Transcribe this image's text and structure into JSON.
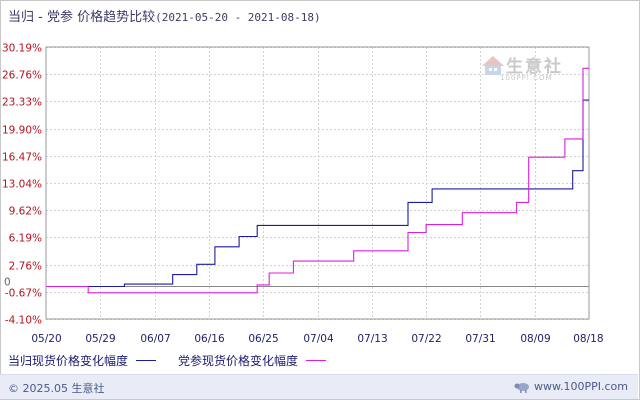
{
  "title": {
    "main": "当归 - 党参 价格趋势比较",
    "range": "(2021-05-20 - 2021-08-18)"
  },
  "colors": {
    "series1": "#1c1ca0",
    "series2": "#dc1ee0",
    "axis_text_y": "#b4141e",
    "axis_text_x": "#222266",
    "zero_line": "#888888",
    "grid": "#d2d2d2"
  },
  "watermark": {
    "name": "生意社",
    "url": "100PPI.COM",
    "icon": "house-logo-icon"
  },
  "chart_data": {
    "type": "line",
    "step": true,
    "ylim": [
      -4.1,
      30.19
    ],
    "y_ticks": [
      "30.19%",
      "26.76%",
      "23.33%",
      "19.90%",
      "16.47%",
      "13.04%",
      "9.62%",
      "6.19%",
      "2.76%",
      "-0.67%",
      "-4.10%"
    ],
    "y_tick_values": [
      30.19,
      26.76,
      23.33,
      19.9,
      16.47,
      13.04,
      9.62,
      6.19,
      2.76,
      -0.67,
      -4.1
    ],
    "zero_line_label": "0",
    "x_ticks": [
      "05/20",
      "05/29",
      "06/07",
      "06/16",
      "06/25",
      "07/04",
      "07/13",
      "07/22",
      "07/31",
      "08/09",
      "08/18"
    ],
    "x_day_range": [
      0,
      90
    ],
    "grid": true,
    "legend_position": "bottom-left",
    "series": [
      {
        "name": "当归现货价格变化幅度",
        "points": [
          [
            0,
            0
          ],
          [
            7,
            0
          ],
          [
            13,
            0.3
          ],
          [
            21,
            1.5
          ],
          [
            25,
            2.8
          ],
          [
            28,
            5.0
          ],
          [
            32,
            6.3
          ],
          [
            35,
            7.7
          ],
          [
            59,
            7.7
          ],
          [
            60,
            10.6
          ],
          [
            63,
            10.6
          ],
          [
            64,
            12.3
          ],
          [
            87,
            12.3
          ],
          [
            87.3,
            14.6
          ],
          [
            88.7,
            14.6
          ],
          [
            89,
            23.5
          ],
          [
            90,
            23.5
          ]
        ]
      },
      {
        "name": "党参现货价格变化幅度",
        "points": [
          [
            0,
            0
          ],
          [
            7,
            0
          ],
          [
            7,
            -0.8
          ],
          [
            34,
            -0.8
          ],
          [
            35,
            0.2
          ],
          [
            37,
            1.7
          ],
          [
            41,
            3.2
          ],
          [
            51,
            4.5
          ],
          [
            60,
            6.8
          ],
          [
            63,
            7.8
          ],
          [
            69,
            9.3
          ],
          [
            78,
            10.6
          ],
          [
            80,
            16.3
          ],
          [
            86,
            18.6
          ],
          [
            89,
            27.5
          ],
          [
            90,
            27.5
          ]
        ]
      }
    ]
  },
  "footer": {
    "copyright": "© 2025.05 生意社",
    "site": "www.100PPI.com",
    "icon": "sheep-logo-icon"
  }
}
